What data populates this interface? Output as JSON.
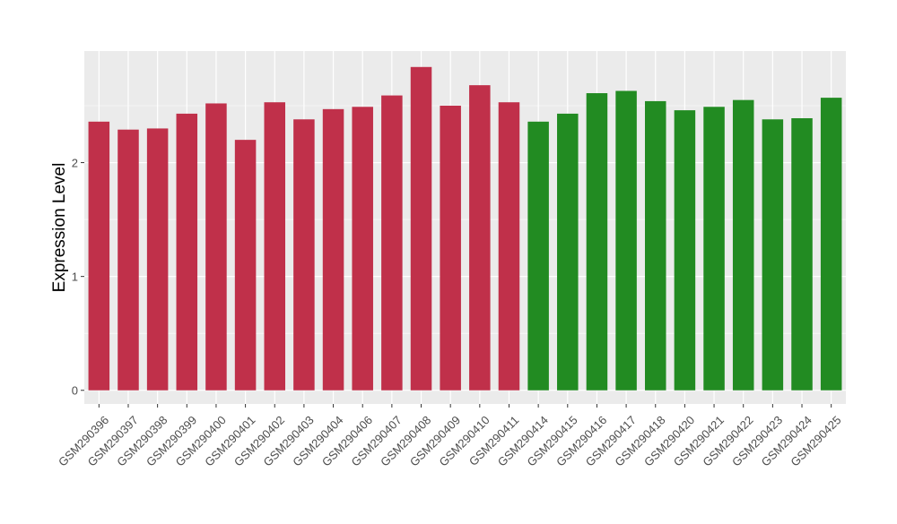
{
  "chart_data": {
    "type": "bar",
    "ylabel": "Expression Level",
    "xlabel": "",
    "title": "",
    "ylim": [
      -0.12,
      2.98
    ],
    "yticks": [
      0,
      1,
      2
    ],
    "grid": true,
    "legend": "none",
    "colors": {
      "group1": "#C0304A",
      "group2": "#228B22",
      "panel": "#EBEBEB",
      "grid": "#FFFFFF",
      "axis_text": "#4D4D4D"
    },
    "categories": [
      "GSM290396",
      "GSM290397",
      "GSM290398",
      "GSM290399",
      "GSM290400",
      "GSM290401",
      "GSM290402",
      "GSM290403",
      "GSM290404",
      "GSM290406",
      "GSM290407",
      "GSM290408",
      "GSM290409",
      "GSM290410",
      "GSM290411",
      "GSM290414",
      "GSM290415",
      "GSM290416",
      "GSM290417",
      "GSM290418",
      "GSM290420",
      "GSM290421",
      "GSM290422",
      "GSM290423",
      "GSM290424",
      "GSM290425"
    ],
    "values": [
      2.36,
      2.29,
      2.3,
      2.43,
      2.52,
      2.2,
      2.53,
      2.38,
      2.47,
      2.49,
      2.59,
      2.84,
      2.5,
      2.68,
      2.53,
      2.36,
      2.43,
      2.61,
      2.63,
      2.54,
      2.46,
      2.49,
      2.55,
      2.38,
      2.39,
      2.57
    ],
    "groups": [
      1,
      1,
      1,
      1,
      1,
      1,
      1,
      1,
      1,
      1,
      1,
      1,
      1,
      1,
      1,
      2,
      2,
      2,
      2,
      2,
      2,
      2,
      2,
      2,
      2,
      2
    ]
  }
}
